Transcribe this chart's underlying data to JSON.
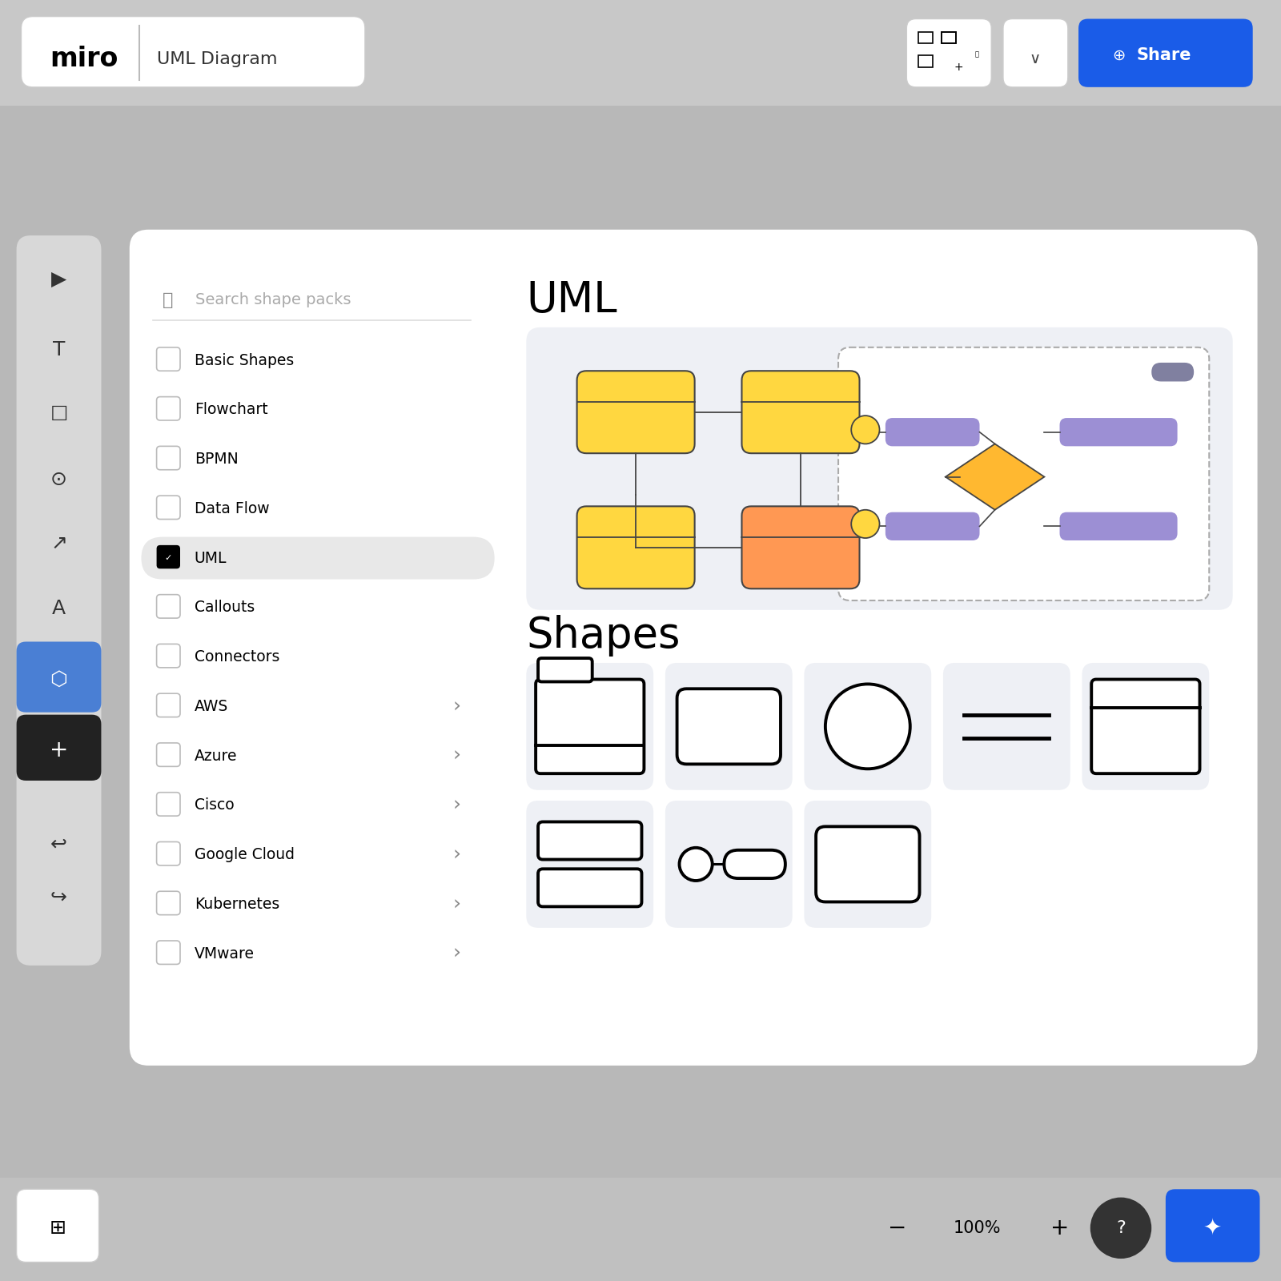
{
  "bg_color": "#b8b8b8",
  "panel_bg": "#ffffff",
  "header_bg": "#c8c8c8",
  "miro_logo_box_bg": "#ffffff",
  "miro_logo_box_border": "#dddddd",
  "title": "UML Diagram",
  "miro_text": "miro",
  "search_placeholder": "Search shape packs",
  "shape_packs": [
    "Basic Shapes",
    "Flowchart",
    "BPMN",
    "Data Flow",
    "UML",
    "Callouts",
    "Connectors",
    "AWS",
    "Azure",
    "Cisco",
    "Google Cloud",
    "Kubernetes",
    "VMware"
  ],
  "shape_packs_arrow": [
    false,
    false,
    false,
    false,
    false,
    false,
    false,
    true,
    true,
    true,
    true,
    true,
    true
  ],
  "selected_item": "UML",
  "uml_title": "UML",
  "shapes_title": "Shapes",
  "yellow_color": "#FFD740",
  "orange_color": "#FF9853",
  "purple_color": "#9C8FD4",
  "diamond_color": "#FFB830",
  "share_btn_color": "#1a5ce8",
  "toolbar_highlight": "#4a7fd4",
  "preview_bg": "#eef0f5",
  "cell_bg": "#eef0f5",
  "selected_row_bg": "#e8e8e8",
  "gray_border": "#cccccc"
}
